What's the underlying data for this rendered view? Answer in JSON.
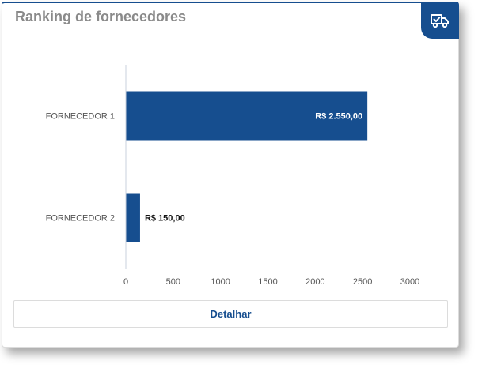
{
  "card": {
    "title": "Ranking de fornecedores",
    "icon": "truck-check-icon",
    "detail_button_label": "Detalhar"
  },
  "colors": {
    "accent": "#164e8f",
    "title": "#8a8a8a",
    "axis": "#c8d0dc"
  },
  "chart_data": {
    "type": "bar",
    "orientation": "horizontal",
    "title": "",
    "xlabel": "",
    "ylabel": "",
    "categories": [
      "FORNECEDOR 1",
      "FORNECEDOR 2"
    ],
    "values": [
      2550,
      150
    ],
    "value_labels": [
      "R$ 2.550,00",
      "R$ 150,00"
    ],
    "xlim": [
      0,
      3000
    ],
    "xticks": [
      0,
      500,
      1000,
      1500,
      2000,
      2500,
      3000
    ],
    "grid": false,
    "legend": "none"
  }
}
